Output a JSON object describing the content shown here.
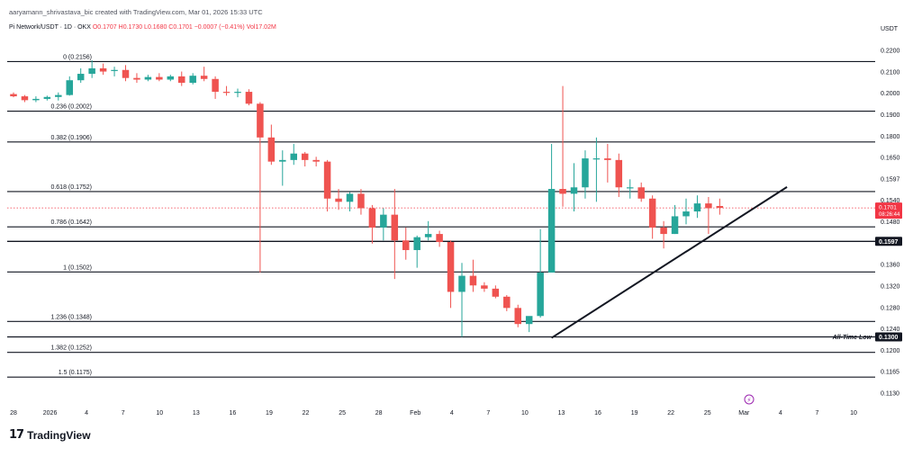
{
  "header": {
    "attribution": "aaryamann_shrivastava_bic created with TradingView.com, Mar 01, 2026 15:33 UTC",
    "symbol": "Pi Network/USDT · 1D · OKX",
    "ohlc": "O0.1707 H0.1730 L0.1680 C0.1701 −0.0007 (−0.41%)",
    "volume": "Vol17.02M",
    "currency": "USDT"
  },
  "branding": {
    "logo_mark": "17",
    "logo_text": "TradingView"
  },
  "colors": {
    "up": "#26a69a",
    "down": "#ef5350",
    "line": "#131722",
    "price_tag": "#f23645"
  },
  "chart_data": {
    "type": "candlestick",
    "ylim": [
      0.11,
      0.223
    ],
    "y_ticks": [
      "0.2200",
      "0.2100",
      "0.2000",
      "0.1900",
      "0.1800",
      "0.1650",
      "0.1597",
      "0.1540",
      "0.1480",
      "0.1420",
      "0.1360",
      "0.1320",
      "0.1280",
      "0.1240",
      "0.1200",
      "0.1165",
      "0.1130"
    ],
    "x_ticks": [
      "28",
      "2026",
      "4",
      "7",
      "10",
      "13",
      "16",
      "19",
      "22",
      "25",
      "28",
      "Feb",
      "4",
      "7",
      "10",
      "13",
      "16",
      "19",
      "22",
      "25",
      "Mar",
      "4",
      "7",
      "10"
    ],
    "fib_levels": [
      {
        "label": "0 (0.2156)",
        "value": 0.2156
      },
      {
        "label": "0.236 (0.2002)",
        "value": 0.2002
      },
      {
        "label": "0.382 (0.1906)",
        "value": 0.1906
      },
      {
        "label": "0.618 (0.1752)",
        "value": 0.1752
      },
      {
        "label": "0.786 (0.1642)",
        "value": 0.1642
      },
      {
        "label": "1 (0.1502)",
        "value": 0.1502
      },
      {
        "label": "1.236 (0.1348)",
        "value": 0.1348
      },
      {
        "label": "1.382 (0.1252)",
        "value": 0.1252
      },
      {
        "label": "1.5 (0.1175)",
        "value": 0.1175
      }
    ],
    "horizontal_levels": [
      {
        "value": 0.1597,
        "tag": "0.1597"
      },
      {
        "value": 0.13,
        "tag": "0.1300",
        "label": "All-Time Low"
      }
    ],
    "current_price": {
      "value": 0.1701,
      "tag": "0.1701",
      "countdown": "08:26:44"
    },
    "trendline": {
      "from": {
        "x_index": 48,
        "y": 0.1297
      },
      "to": {
        "x_index": 69,
        "y": 0.1766
      }
    },
    "candles": [
      {
        "o": 0.2055,
        "h": 0.206,
        "l": 0.2045,
        "c": 0.2048
      },
      {
        "o": 0.2048,
        "h": 0.2052,
        "l": 0.203,
        "c": 0.2036
      },
      {
        "o": 0.2036,
        "h": 0.2048,
        "l": 0.203,
        "c": 0.204
      },
      {
        "o": 0.204,
        "h": 0.205,
        "l": 0.2035,
        "c": 0.2046
      },
      {
        "o": 0.2046,
        "h": 0.206,
        "l": 0.2035,
        "c": 0.2052
      },
      {
        "o": 0.2052,
        "h": 0.211,
        "l": 0.205,
        "c": 0.2098
      },
      {
        "o": 0.2098,
        "h": 0.2135,
        "l": 0.209,
        "c": 0.2118
      },
      {
        "o": 0.2118,
        "h": 0.216,
        "l": 0.2105,
        "c": 0.2135
      },
      {
        "o": 0.2135,
        "h": 0.215,
        "l": 0.2115,
        "c": 0.2125
      },
      {
        "o": 0.213,
        "h": 0.214,
        "l": 0.211,
        "c": 0.213
      },
      {
        "o": 0.213,
        "h": 0.2145,
        "l": 0.2095,
        "c": 0.2105
      },
      {
        "o": 0.2105,
        "h": 0.212,
        "l": 0.209,
        "c": 0.21
      },
      {
        "o": 0.21,
        "h": 0.2115,
        "l": 0.2095,
        "c": 0.2108
      },
      {
        "o": 0.2108,
        "h": 0.212,
        "l": 0.2095,
        "c": 0.21
      },
      {
        "o": 0.21,
        "h": 0.2115,
        "l": 0.2095,
        "c": 0.211
      },
      {
        "o": 0.211,
        "h": 0.2125,
        "l": 0.208,
        "c": 0.209
      },
      {
        "o": 0.209,
        "h": 0.212,
        "l": 0.2085,
        "c": 0.2112
      },
      {
        "o": 0.2112,
        "h": 0.214,
        "l": 0.2095,
        "c": 0.2102
      },
      {
        "o": 0.2102,
        "h": 0.211,
        "l": 0.204,
        "c": 0.2062
      },
      {
        "o": 0.2062,
        "h": 0.208,
        "l": 0.205,
        "c": 0.206
      },
      {
        "o": 0.206,
        "h": 0.2072,
        "l": 0.2045,
        "c": 0.2062
      },
      {
        "o": 0.2062,
        "h": 0.207,
        "l": 0.202,
        "c": 0.2025
      },
      {
        "o": 0.2025,
        "h": 0.203,
        "l": 0.15,
        "c": 0.192
      },
      {
        "o": 0.192,
        "h": 0.196,
        "l": 0.1835,
        "c": 0.1845
      },
      {
        "o": 0.1845,
        "h": 0.188,
        "l": 0.177,
        "c": 0.185
      },
      {
        "o": 0.185,
        "h": 0.19,
        "l": 0.1835,
        "c": 0.187
      },
      {
        "o": 0.187,
        "h": 0.1875,
        "l": 0.183,
        "c": 0.185
      },
      {
        "o": 0.185,
        "h": 0.186,
        "l": 0.183,
        "c": 0.1845
      },
      {
        "o": 0.1845,
        "h": 0.185,
        "l": 0.169,
        "c": 0.173
      },
      {
        "o": 0.173,
        "h": 0.176,
        "l": 0.1695,
        "c": 0.172
      },
      {
        "o": 0.172,
        "h": 0.175,
        "l": 0.169,
        "c": 0.1745
      },
      {
        "o": 0.1745,
        "h": 0.176,
        "l": 0.168,
        "c": 0.17
      },
      {
        "o": 0.17,
        "h": 0.171,
        "l": 0.159,
        "c": 0.164
      },
      {
        "o": 0.164,
        "h": 0.17,
        "l": 0.16,
        "c": 0.168
      },
      {
        "o": 0.168,
        "h": 0.176,
        "l": 0.148,
        "c": 0.16
      },
      {
        "o": 0.16,
        "h": 0.164,
        "l": 0.154,
        "c": 0.157
      },
      {
        "o": 0.157,
        "h": 0.1615,
        "l": 0.1515,
        "c": 0.161
      },
      {
        "o": 0.161,
        "h": 0.166,
        "l": 0.16,
        "c": 0.162
      },
      {
        "o": 0.162,
        "h": 0.163,
        "l": 0.158,
        "c": 0.1595
      },
      {
        "o": 0.1595,
        "h": 0.16,
        "l": 0.139,
        "c": 0.144
      },
      {
        "o": 0.144,
        "h": 0.153,
        "l": 0.13,
        "c": 0.149
      },
      {
        "o": 0.149,
        "h": 0.154,
        "l": 0.144,
        "c": 0.146
      },
      {
        "o": 0.146,
        "h": 0.147,
        "l": 0.144,
        "c": 0.145
      },
      {
        "o": 0.145,
        "h": 0.146,
        "l": 0.142,
        "c": 0.1425
      },
      {
        "o": 0.1425,
        "h": 0.143,
        "l": 0.138,
        "c": 0.139
      },
      {
        "o": 0.139,
        "h": 0.14,
        "l": 0.133,
        "c": 0.134
      },
      {
        "o": 0.134,
        "h": 0.1355,
        "l": 0.1315,
        "c": 0.1365
      },
      {
        "o": 0.1365,
        "h": 0.1635,
        "l": 0.136,
        "c": 0.15
      },
      {
        "o": 0.15,
        "h": 0.19,
        "l": 0.15,
        "c": 0.176
      },
      {
        "o": 0.176,
        "h": 0.208,
        "l": 0.1705,
        "c": 0.1745
      },
      {
        "o": 0.1745,
        "h": 0.184,
        "l": 0.169,
        "c": 0.1765
      },
      {
        "o": 0.1765,
        "h": 0.188,
        "l": 0.173,
        "c": 0.1855
      },
      {
        "o": 0.1855,
        "h": 0.192,
        "l": 0.172,
        "c": 0.1855
      },
      {
        "o": 0.1855,
        "h": 0.19,
        "l": 0.178,
        "c": 0.185
      },
      {
        "o": 0.185,
        "h": 0.187,
        "l": 0.1735,
        "c": 0.1765
      },
      {
        "o": 0.1765,
        "h": 0.179,
        "l": 0.173,
        "c": 0.1765
      },
      {
        "o": 0.1765,
        "h": 0.178,
        "l": 0.172,
        "c": 0.173
      },
      {
        "o": 0.173,
        "h": 0.174,
        "l": 0.1605,
        "c": 0.164
      },
      {
        "o": 0.164,
        "h": 0.166,
        "l": 0.1575,
        "c": 0.162
      },
      {
        "o": 0.162,
        "h": 0.171,
        "l": 0.162,
        "c": 0.1675
      },
      {
        "o": 0.1675,
        "h": 0.173,
        "l": 0.165,
        "c": 0.169
      },
      {
        "o": 0.169,
        "h": 0.174,
        "l": 0.167,
        "c": 0.1715
      },
      {
        "o": 0.1715,
        "h": 0.1735,
        "l": 0.162,
        "c": 0.17
      },
      {
        "o": 0.1707,
        "h": 0.173,
        "l": 0.168,
        "c": 0.1701
      }
    ]
  }
}
